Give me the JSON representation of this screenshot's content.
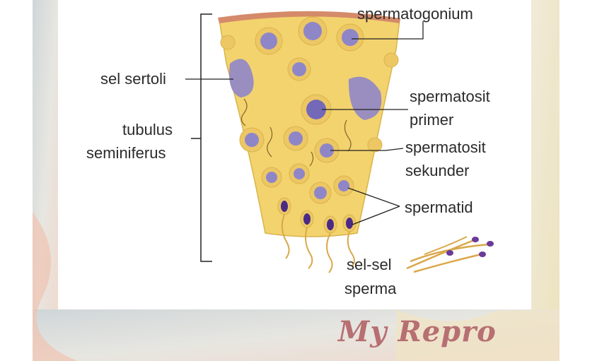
{
  "labels": {
    "spermatogonium": "spermatogonium",
    "sel_sertoli": "sel sertoli",
    "tubulus_line1": "tubulus",
    "tubulus_line2": "seminiferus",
    "spermatosit_primer_line1": "spermatosit",
    "spermatosit_primer_line2": "primer",
    "spermatosit_sekunder_line1": "spermatosit",
    "spermatosit_sekunder_line2": "sekunder",
    "spermatid": "spermatid",
    "sel_sel_sperma_line1": "sel-sel",
    "sel_sel_sperma_line2": "sperma"
  },
  "watermark": "My Repro",
  "colors": {
    "tissue": "#f3d36e",
    "tissue_edge": "#d9b44a",
    "cell_ring": "#e8c25a",
    "nucleus": "#8f86c8",
    "membrane": "#d58a6a",
    "sperm_head": "#4b2a86",
    "flagellum": "#d9a84a",
    "watermark": "#b76f72"
  }
}
